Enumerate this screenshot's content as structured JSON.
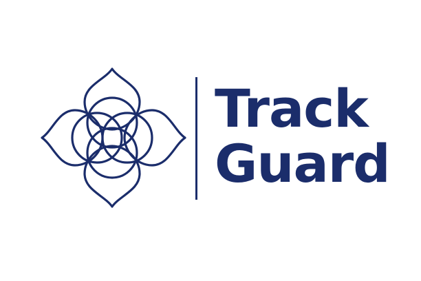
{
  "brand": {
    "line1": "Track",
    "line2": "Guard",
    "color": "#1b2d6b",
    "emblem_icon": "four-petal-lotus-icon"
  }
}
